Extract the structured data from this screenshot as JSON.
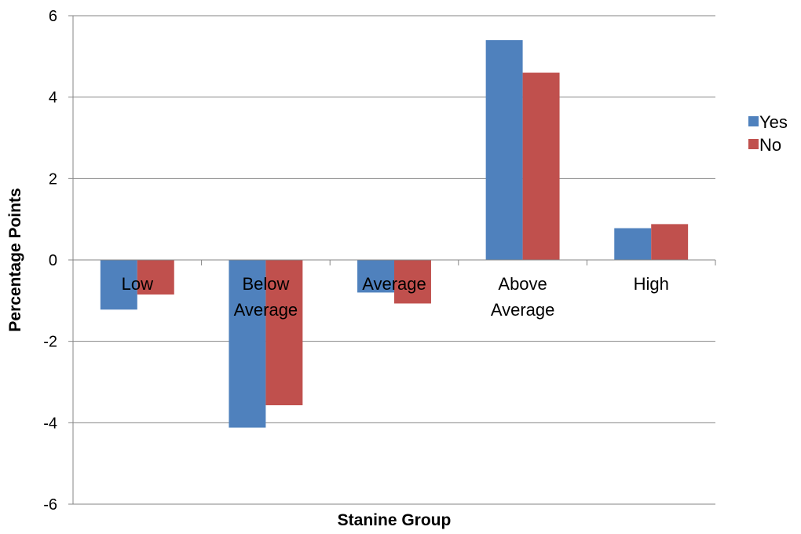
{
  "chart_data": {
    "type": "bar",
    "title": "",
    "xlabel": "Stanine Group",
    "ylabel": "Percentage Points",
    "categories": [
      [
        "Low"
      ],
      [
        "Below",
        "Average"
      ],
      [
        "Average"
      ],
      [
        "Above",
        "Average"
      ],
      [
        "High"
      ]
    ],
    "series": [
      {
        "name": "Yes",
        "color": "#4F81BD",
        "values": [
          -1.22,
          -4.12,
          -0.8,
          5.4,
          0.78
        ]
      },
      {
        "name": "No",
        "color": "#C0504D",
        "values": [
          -0.85,
          -3.57,
          -1.07,
          4.6,
          0.88
        ]
      }
    ],
    "ylim": [
      -6,
      6
    ],
    "yticks": [
      -6,
      -4,
      -2,
      0,
      2,
      4,
      6
    ],
    "grid": true,
    "legend_position": "right"
  }
}
